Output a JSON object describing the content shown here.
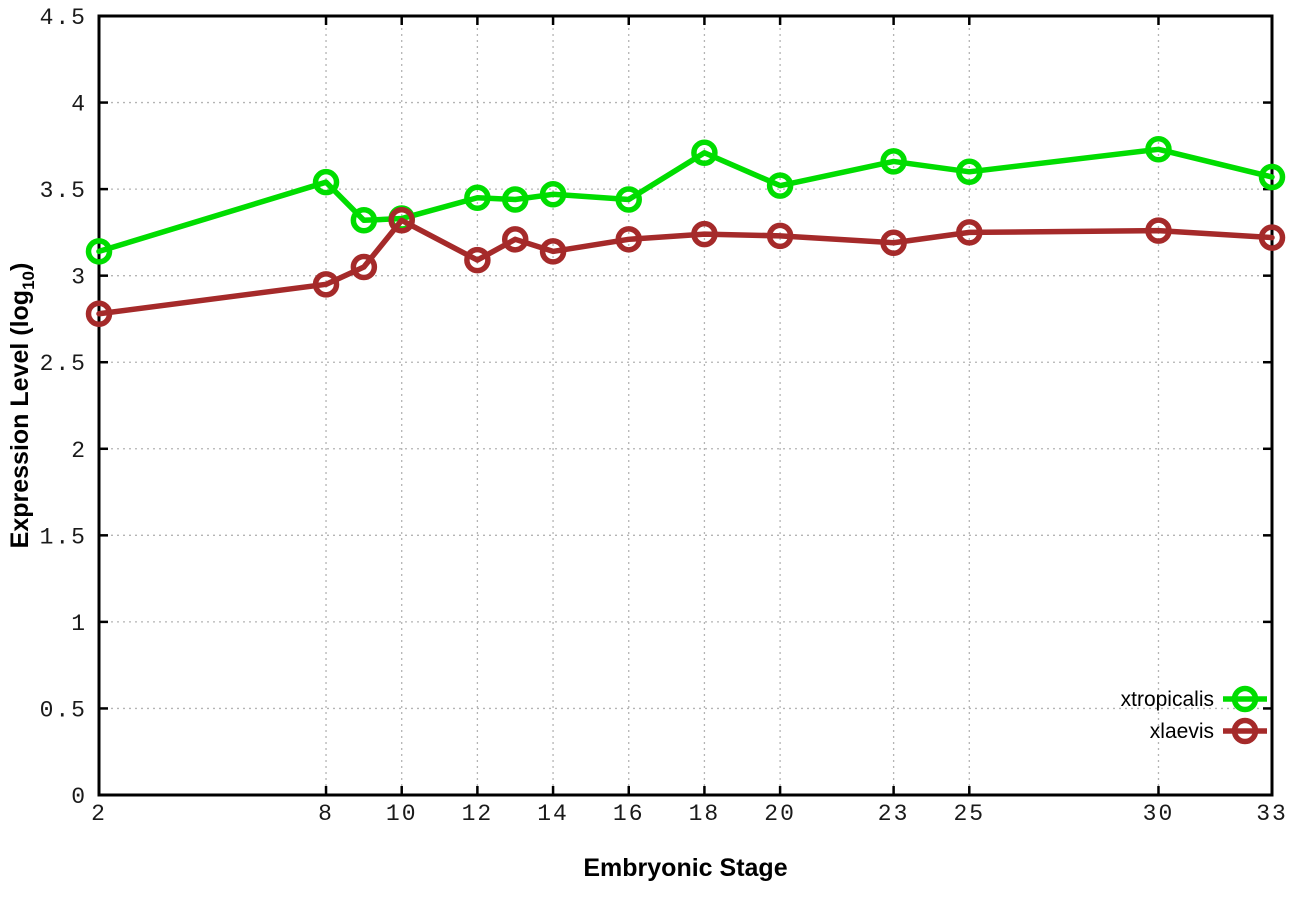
{
  "chart_data": {
    "type": "line",
    "x": [
      2,
      8,
      9,
      10,
      12,
      13,
      14,
      16,
      18,
      20,
      23,
      25,
      30,
      33
    ],
    "series": [
      {
        "name": "xtropicalis",
        "color": "#00dd00",
        "marker": "open-circle",
        "values": [
          3.14,
          3.54,
          3.32,
          3.33,
          3.45,
          3.44,
          3.47,
          3.44,
          3.71,
          3.52,
          3.66,
          3.6,
          3.73,
          3.57
        ]
      },
      {
        "name": "xlaevis",
        "color": "#a52a2a",
        "marker": "open-circle",
        "values": [
          2.78,
          2.95,
          3.05,
          3.32,
          3.09,
          3.21,
          3.14,
          3.21,
          3.24,
          3.23,
          3.19,
          3.25,
          3.26,
          3.22
        ]
      }
    ],
    "title": "",
    "xlabel": "Embryonic Stage",
    "ylabel": "Expression Level (log10)",
    "ylabel_parts": {
      "prefix": "Expression Level (log",
      "sub": "10",
      "suffix": ")"
    },
    "xlim": [
      2,
      33
    ],
    "ylim": [
      0,
      4.5
    ],
    "xticks": {
      "values": [
        2,
        8,
        10,
        12,
        14,
        16,
        18,
        20,
        23,
        25,
        30,
        33
      ],
      "labels": [
        "2",
        "8",
        "10",
        "12",
        "14",
        "16",
        "18",
        "20",
        "23",
        "25",
        "30",
        "33"
      ]
    },
    "yticks": {
      "values": [
        0,
        0.5,
        1,
        1.5,
        2,
        2.5,
        3,
        3.5,
        4,
        4.5
      ],
      "labels": [
        "0",
        "0.5",
        "1",
        "1.5",
        "2",
        "2.5",
        "3",
        "3.5",
        "4",
        "4.5"
      ]
    },
    "grid": true,
    "grid_style": "dotted",
    "legend_position": "bottom-right",
    "legend_entries": [
      "xtropicalis",
      "xlaevis"
    ]
  },
  "colors": {
    "background": "#ffffff",
    "axis": "#000000",
    "grid": "#b4b4b4",
    "text": "#1a1a1a",
    "series_green": "#00dd00",
    "series_red": "#a52a2a"
  }
}
